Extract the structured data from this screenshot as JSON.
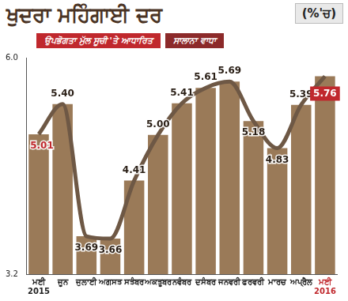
{
  "chart_data": {
    "type": "bar",
    "title": "ਖੁਦਰਾ ਮਹਿੰਗਾਈ ਦਰ",
    "ylabel": "(%'ਚ)",
    "subtitle": [
      "ਉਪਭੋਗਤਾ ਮੁੱਲ ਸੂਚੀ 'ਤੇ ਆਧਾਰਿਤ",
      "ਸਾਲਾਨਾ ਵਾਧਾ"
    ],
    "categories": [
      [
        "ਮਈ",
        "2015"
      ],
      "ਜੂਨ",
      "ਜੁਲਾਈ",
      "ਅਗਸਤ",
      "ਸਤੰਬਰ",
      "ਅਕਤੂਬਰ",
      "ਨਵੰਬਰ",
      "ਦਸੰਬਰ",
      "ਜਨਵਰੀ",
      "ਫਰਵਰੀ",
      "ਮਾਰਚ",
      "ਅਪ੍ਰੈਲ",
      [
        "ਮਈ",
        "2016"
      ]
    ],
    "series": [
      {
        "type": "line",
        "color": "#6e5845",
        "values": [
          5.01,
          5.4,
          3.69,
          3.66,
          4.41,
          5.0,
          5.41,
          5.61,
          5.69,
          5.18,
          4.83,
          5.39,
          5.76
        ],
        "value_labels": [
          "5.01",
          "5.40",
          "3.69",
          "3.66",
          "4.41",
          "5.00",
          "5.41",
          "5.61",
          "5.69",
          "5.18",
          "4.83",
          "5.39",
          "5.76"
        ]
      },
      {
        "type": "bar",
        "color": "#9a7a58",
        "values": [
          5.01,
          5.4,
          3.69,
          3.66,
          4.41,
          5.0,
          5.41,
          5.61,
          5.69,
          5.18,
          4.83,
          5.39,
          5.76
        ]
      }
    ],
    "ylim": [
      3.2,
      6.0
    ],
    "yticks": [
      3.2,
      {
        "value": 6,
        "label": "6.0"
      }
    ],
    "grid": false,
    "data_labels": true
  }
}
